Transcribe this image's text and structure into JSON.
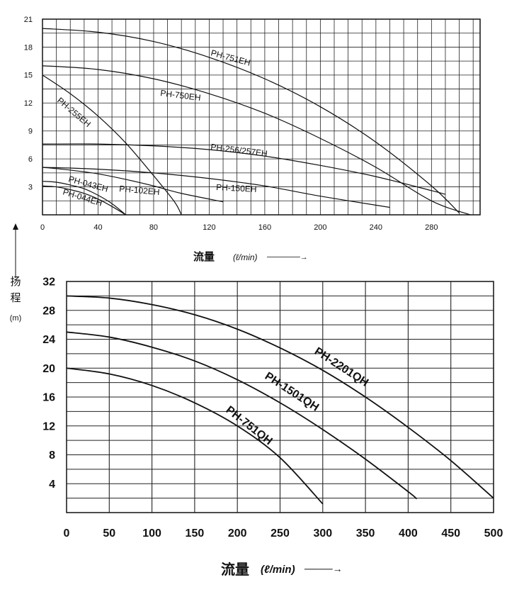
{
  "ylabel": {
    "c1": "扬",
    "c2": "程",
    "unit": "(m)"
  },
  "chart_data": [
    {
      "type": "line",
      "x_axis": {
        "label_main": "流量",
        "label_unit": "(ℓ/min)",
        "arrow": "──────→",
        "ticks": [
          "0",
          "40",
          "80",
          "120",
          "160",
          "200",
          "240",
          "280"
        ],
        "tick_values": [
          0,
          40,
          80,
          120,
          160,
          200,
          240,
          280
        ],
        "range": [
          0,
          315
        ]
      },
      "y_axis": {
        "ticks": [
          "3",
          "6",
          "9",
          "12",
          "15",
          "18",
          "21"
        ],
        "tick_values": [
          3,
          6,
          9,
          12,
          15,
          18,
          21
        ],
        "range": [
          0,
          21
        ]
      },
      "grid": true,
      "series": [
        {
          "name": "PH-751EH",
          "x": [
            0,
            40,
            80,
            120,
            160,
            200,
            240,
            280,
            300
          ],
          "y": [
            20,
            19.6,
            18.6,
            16.9,
            14.6,
            11.6,
            7.8,
            3.1,
            0.2
          ]
        },
        {
          "name": "PH-750EH",
          "x": [
            0,
            40,
            80,
            120,
            160,
            200,
            240,
            280,
            308
          ],
          "y": [
            16,
            15.6,
            14.6,
            13.0,
            10.9,
            8.2,
            5.1,
            1.5,
            0
          ]
        },
        {
          "name": "PH-255EH",
          "x": [
            0,
            20,
            40,
            60,
            80,
            95,
            100
          ],
          "y": [
            15,
            13.0,
            10.6,
            7.7,
            4.2,
            1.4,
            0
          ]
        },
        {
          "name": "PH-256/257EH",
          "x": [
            0,
            40,
            80,
            120,
            160,
            200,
            240,
            280,
            290
          ],
          "y": [
            7.6,
            7.6,
            7.4,
            7.0,
            6.3,
            5.3,
            4.1,
            2.6,
            2.2
          ]
        },
        {
          "name": "PH-150EH",
          "x": [
            0,
            40,
            80,
            120,
            160,
            200,
            250
          ],
          "y": [
            5.1,
            4.9,
            4.5,
            3.9,
            3.1,
            2.0,
            0.8
          ]
        },
        {
          "name": "PH-102EH",
          "x": [
            0,
            20,
            40,
            60,
            80,
            100,
            130
          ],
          "y": [
            5.1,
            4.8,
            4.4,
            3.8,
            3.1,
            2.3,
            1.4
          ]
        },
        {
          "name": "PH-043EH",
          "x": [
            0,
            10,
            20,
            30,
            40,
            50,
            60
          ],
          "y": [
            3.6,
            3.5,
            3.2,
            2.8,
            2.1,
            1.2,
            0
          ]
        },
        {
          "name": "PH-044EH",
          "x": [
            0,
            10,
            20,
            30,
            40,
            50,
            60
          ],
          "y": [
            3.1,
            3.0,
            2.7,
            2.3,
            1.7,
            0.9,
            0
          ]
        }
      ]
    },
    {
      "type": "line",
      "x_axis": {
        "label_main": "流量",
        "label_unit": "(ℓ/min)",
        "arrow": "────→",
        "ticks": [
          "0",
          "50",
          "100",
          "150",
          "200",
          "250",
          "300",
          "350",
          "400",
          "450",
          "500"
        ],
        "tick_values": [
          0,
          50,
          100,
          150,
          200,
          250,
          300,
          350,
          400,
          450,
          500
        ],
        "range": [
          0,
          500
        ]
      },
      "y_axis": {
        "ticks": [
          "4",
          "8",
          "12",
          "16",
          "20",
          "24",
          "28",
          "32"
        ],
        "tick_values": [
          4,
          8,
          12,
          16,
          20,
          24,
          28,
          32
        ],
        "range": [
          0,
          32
        ]
      },
      "grid": true,
      "series": [
        {
          "name": "PH-2201QH",
          "x": [
            0,
            50,
            100,
            150,
            200,
            250,
            300,
            350,
            400,
            450,
            500
          ],
          "y": [
            30,
            29.7,
            28.8,
            27.4,
            25.4,
            22.8,
            19.7,
            16.0,
            11.8,
            7.2,
            2.0
          ]
        },
        {
          "name": "PH-1501QH",
          "x": [
            0,
            50,
            100,
            150,
            200,
            250,
            300,
            350,
            400,
            410
          ],
          "y": [
            25,
            24.3,
            22.9,
            21.0,
            18.4,
            15.2,
            11.5,
            7.4,
            2.9,
            1.9
          ]
        },
        {
          "name": "PH-751QH",
          "x": [
            0,
            50,
            100,
            150,
            200,
            250,
            300
          ],
          "y": [
            20,
            19.2,
            17.6,
            15.2,
            12.0,
            7.6,
            1.2
          ]
        }
      ]
    }
  ]
}
